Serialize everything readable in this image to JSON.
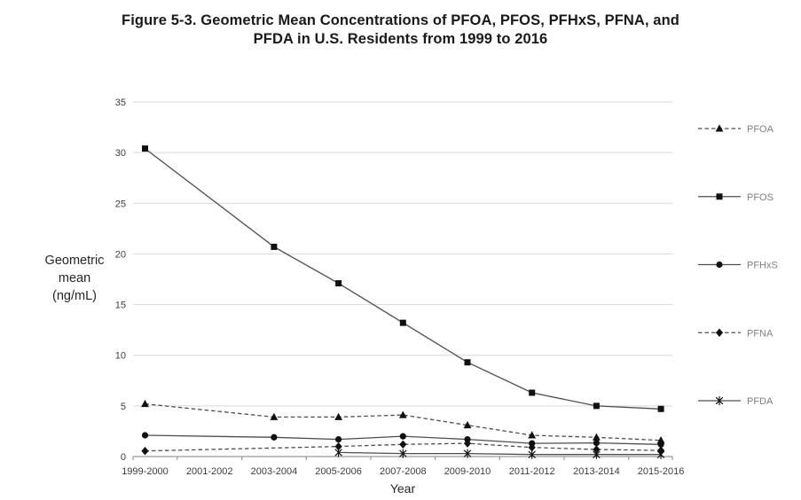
{
  "figure": {
    "title_line1": "Figure 5-3.  Geometric Mean Concentrations of PFOA, PFOS, PFHxS, PFNA, and",
    "title_line2": "PFDA in U.S. Residents from 1999 to 2016"
  },
  "chart_data": {
    "type": "line",
    "title": "Figure 5-3. Geometric Mean Concentrations of PFOA, PFOS, PFHxS, PFNA, and PFDA in U.S. Residents from 1999 to 2016",
    "xlabel": "Year",
    "ylabel": "Geometric mean (ng/mL)",
    "ylabel_lines": [
      "Geometric",
      "mean",
      "(ng/mL)"
    ],
    "ylim": [
      0,
      35
    ],
    "yticks": [
      0,
      5,
      10,
      15,
      20,
      25,
      30,
      35
    ],
    "grid": "horizontal-only",
    "legend_position": "right",
    "categories": [
      "1999-2000",
      "2001-2002",
      "2003-2004",
      "2005-2006",
      "2007-2008",
      "2009-2010",
      "2011-2012",
      "2013-2014",
      "2015-2016"
    ],
    "series": [
      {
        "name": "PFOA",
        "marker": "triangle",
        "line": "dashed",
        "values": [
          5.2,
          null,
          3.9,
          3.9,
          4.1,
          3.1,
          2.1,
          1.9,
          1.6
        ]
      },
      {
        "name": "PFOS",
        "marker": "square",
        "line": "solid",
        "values": [
          30.4,
          null,
          20.7,
          17.1,
          13.2,
          9.3,
          6.3,
          5.0,
          4.7
        ]
      },
      {
        "name": "PFHxS",
        "marker": "circle",
        "line": "solid",
        "values": [
          2.1,
          null,
          1.9,
          1.7,
          2.0,
          1.7,
          1.3,
          1.35,
          1.2
        ]
      },
      {
        "name": "PFNA",
        "marker": "diamond",
        "line": "dashed",
        "values": [
          0.55,
          null,
          null,
          1.0,
          1.2,
          1.3,
          0.9,
          0.7,
          0.6
        ]
      },
      {
        "name": "PFDA",
        "marker": "star",
        "line": "solid",
        "values": [
          null,
          null,
          null,
          0.4,
          0.3,
          0.3,
          0.2,
          0.2,
          0.2
        ]
      }
    ]
  },
  "colors": {
    "background": "#ffffff",
    "title": "#1a1a1a",
    "series_line": "#4d4d4d",
    "marker": "#111111",
    "gridline": "#d9d9d9",
    "axis": "#9a9a9a",
    "tick_label": "#3d3d3d",
    "legend_label": "#7f7f7f",
    "axis_title": "#262626"
  }
}
